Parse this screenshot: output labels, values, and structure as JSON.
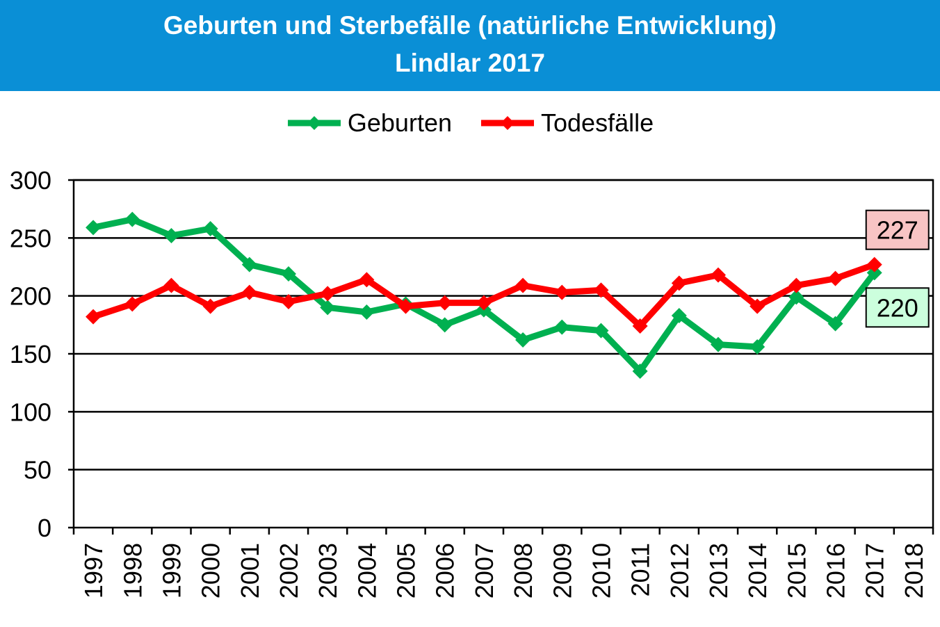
{
  "header": {
    "title_line1": "Geburten und Sterbefälle (natürliche Entwicklung)",
    "title_line2": "Lindlar 2017"
  },
  "colors": {
    "header_bg": "#0a8fd6",
    "geburten": "#00b050",
    "todesfaelle": "#ff0000",
    "label_geburten_bg": "#ccffdd",
    "label_todesfaelle_bg": "#f8c4c4"
  },
  "chart_data": {
    "type": "line",
    "categories": [
      "1997",
      "1998",
      "1999",
      "2000",
      "2001",
      "2002",
      "2003",
      "2004",
      "2005",
      "2006",
      "2007",
      "2008",
      "2009",
      "2010",
      "2011",
      "2012",
      "2013",
      "2014",
      "2015",
      "2016",
      "2017",
      "2018"
    ],
    "series": [
      {
        "name": "Geburten",
        "color": "#00b050",
        "values": [
          259,
          266,
          252,
          258,
          227,
          219,
          190,
          186,
          193,
          175,
          188,
          162,
          173,
          170,
          135,
          183,
          158,
          156,
          199,
          176,
          220,
          null
        ]
      },
      {
        "name": "Todesfälle",
        "color": "#ff0000",
        "values": [
          182,
          193,
          209,
          191,
          203,
          195,
          202,
          214,
          191,
          194,
          194,
          209,
          203,
          205,
          174,
          211,
          218,
          191,
          209,
          215,
          227,
          null
        ]
      }
    ],
    "ylim": [
      0,
      300
    ],
    "yticks": [
      "0",
      "50",
      "100",
      "150",
      "200",
      "250",
      "300"
    ],
    "grid": true,
    "legend_position": "top-center",
    "data_labels": [
      {
        "series": "Todesfälle",
        "category": "2017",
        "text": "227"
      },
      {
        "series": "Geburten",
        "category": "2017",
        "text": "220"
      }
    ]
  }
}
